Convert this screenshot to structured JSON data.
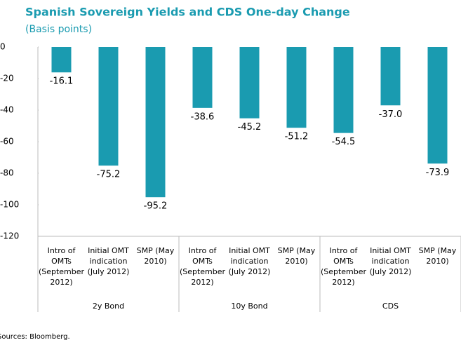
{
  "chart_data": {
    "type": "bar",
    "title": "Spanish Sovereign Yields and CDS One-day Change",
    "subtitle": "(Basis points)",
    "categories": [
      "Intro of OMTs (September 2012)",
      "Initial OMT indication (July 2012)",
      "SMP (May 2010)",
      "Intro of OMTs (September 2012)",
      "Initial OMT indication (July 2012)",
      "SMP (May 2010)",
      "Intro of OMTs (September 2012)",
      "Initial OMT indication (July 2012)",
      "SMP (May 2010)"
    ],
    "groups": [
      "2y Bond",
      "10y Bond",
      "CDS"
    ],
    "values": [
      -16.1,
      -75.2,
      -95.2,
      -38.6,
      -45.2,
      -51.2,
      -54.5,
      -37,
      -73.9
    ],
    "value_labels": [
      "-16.1",
      "-75.2",
      "-95.2",
      "-38.6",
      "-45.2",
      "-51.2",
      "-54.5",
      "-37.0",
      "-73.9"
    ],
    "color": "#1a9bb0",
    "ylim": [
      -120,
      0
    ],
    "yticks": [
      0,
      -20,
      -40,
      -60,
      -80,
      -100,
      -120
    ],
    "source": "Sources: Bloomberg."
  }
}
